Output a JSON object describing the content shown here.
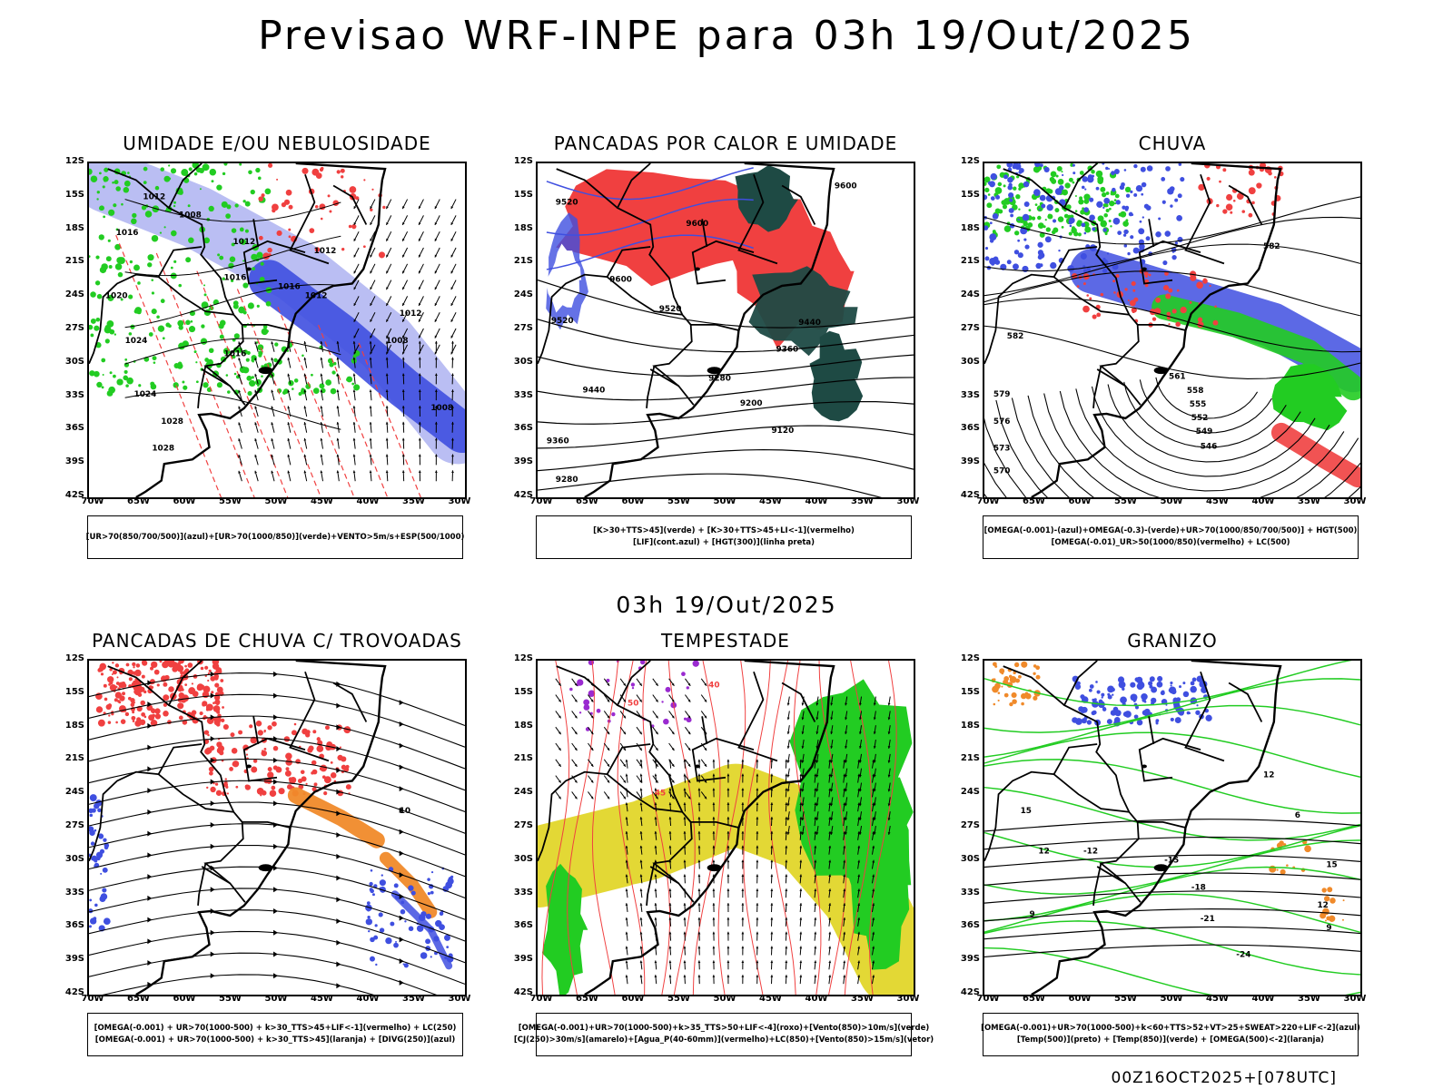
{
  "header": {
    "title": "Previsao WRF-INPE  para 03h 19/Out/2025",
    "mid_time": "03h 19/Out/2025",
    "run_stamp": "00Z16OCT2025+[078UTC]"
  },
  "axes": {
    "lat_ticks": [
      "12S",
      "15S",
      "18S",
      "21S",
      "24S",
      "27S",
      "30S",
      "33S",
      "36S",
      "39S",
      "42S"
    ],
    "lon_ticks": [
      "70W",
      "65W",
      "60W",
      "55W",
      "50W",
      "45W",
      "40W",
      "35W",
      "30W"
    ]
  },
  "colors": {
    "blue": "#3f4fe0",
    "light_blue": "#a9aef0",
    "green": "#22cc22",
    "red": "#f04040",
    "dark_teal": "#1e4a44",
    "orange": "#f08a2a",
    "yellow": "#e2d62a",
    "purple": "#9a2ad0"
  },
  "panels": [
    {
      "id": "umidade",
      "title": "UMIDADE E/OU NEBULOSIDADE",
      "legend": [
        "[UR>70(850/700/500)](azul)+[UR>70(1000/850)](verde)+VENTO>5m/s+ESP(500/1000)"
      ],
      "contour_labels": [
        "1012",
        "1008",
        "1012",
        "1016",
        "1020",
        "1024",
        "1028",
        "1016",
        "1012",
        "1008",
        "1012",
        "1016",
        "1024",
        "1028",
        "1016",
        "1012",
        "1008"
      ]
    },
    {
      "id": "pancadas-calor",
      "title": "PANCADAS POR CALOR E UMIDADE",
      "legend": [
        "[K>30+TTS>45](verde) + [K>30+TTS>45+LI<-1](vermelho)",
        "[LIF](cont.azul) + [HGT(300)](linha preta)"
      ],
      "contour_labels": [
        "9600",
        "9600",
        "9520",
        "9600",
        "9520",
        "9520",
        "9440",
        "9360",
        "9280",
        "9200",
        "9120",
        "9440",
        "9360",
        "9280"
      ]
    },
    {
      "id": "chuva",
      "title": "CHUVA",
      "legend": [
        "[OMEGA(-0.001)-(azul)+OMEGA(-0.3)-(verde)+UR>70(1000/850/700/500)] + HGT(500)",
        "[OMEGA(-0.01)_UR>50(1000/850)(vermelho) + LC(500)"
      ],
      "contour_labels": [
        "582",
        "579",
        "576",
        "573",
        "570",
        "561",
        "558",
        "555",
        "552",
        "549",
        "546",
        "582"
      ]
    },
    {
      "id": "trovoadas",
      "title": "PANCADAS DE CHUVA C/ TROVOADAS",
      "legend": [
        "[OMEGA(-0.001) + UR>70(1000-500) + k>30_TTS>45+LIF<-1](vermelho) + LC(250)",
        "[OMEGA(-0.001) + UR>70(1000-500) + k>30_TTS>45](laranja) + [DIVG(250)](azul)"
      ],
      "contour_labels": [
        "10"
      ]
    },
    {
      "id": "tempestade",
      "title": "TEMPESTADE",
      "legend": [
        "[OMEGA(-0.001)+UR>70(1000-500)+k>35_TTS>50+LIF<-4](roxo)+[Vento(850)>10m/s](verde)",
        "[CJ(250)>30m/s](amarelo)+[Agua_P(40-60mm)](vermelho)+LC(850)+[Vento(850)>15m/s](vetor)"
      ],
      "contour_labels": [
        "50",
        "45",
        "40"
      ]
    },
    {
      "id": "granizo",
      "title": "GRANIZO",
      "legend": [
        "[OMEGA(-0.001)+UR>70(1000-500)+k<60+TTS>52+VT>25+SWEAT>220+LIF<-2](azul)",
        "[Temp(500)](preto) + [Temp(850)](verde) + [OMEGA(500)<-2](laranja)"
      ],
      "contour_labels": [
        "-12",
        "-15",
        "-18",
        "-21",
        "-24",
        "12",
        "15",
        "12",
        "9",
        "6",
        "15",
        "12",
        "9"
      ]
    }
  ]
}
